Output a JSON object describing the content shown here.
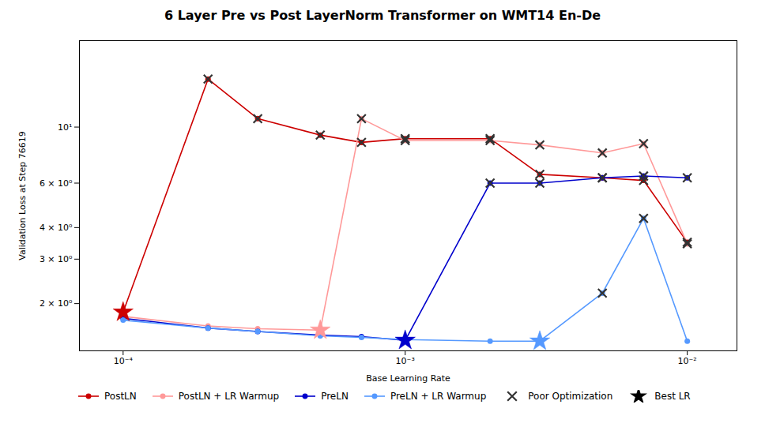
{
  "chart_data": {
    "type": "line",
    "title": "6 Layer Pre vs Post LayerNorm Transformer on WMT14 En-De",
    "xlabel": "Base Learning Rate",
    "ylabel": "Validation Loss at Step 76619",
    "log": true,
    "grid": false,
    "legend": "lower left",
    "xlim": [
      7e-05,
      0.015
    ],
    "ylim": [
      1.3,
      22.0
    ],
    "xticks": [
      {
        "value": 0.0001,
        "label": "10⁻⁴"
      },
      {
        "value": 0.001,
        "label": "10⁻³"
      },
      {
        "value": 0.01,
        "label": "10⁻²"
      }
    ],
    "yticks": [
      {
        "value": 2,
        "label": "2 × 10⁰"
      },
      {
        "value": 3,
        "label": "3 × 10⁰"
      },
      {
        "value": 4,
        "label": "4 × 10⁰"
      },
      {
        "value": 6,
        "label": "6 × 10⁰"
      },
      {
        "value": 10,
        "label": "10¹"
      }
    ],
    "series": [
      {
        "name": "PostLN",
        "type": "line",
        "marker": "circle",
        "color": "#cc0000",
        "x": [
          0.0001,
          0.0002,
          0.0003,
          0.0005,
          0.0007,
          0.001,
          0.002,
          0.003,
          0.005,
          0.007,
          0.01
        ],
        "values": [
          1.85,
          15.5,
          10.8,
          9.3,
          8.7,
          9.0,
          9.0,
          6.5,
          6.3,
          6.15,
          3.5
        ]
      },
      {
        "name": "PostLN + LR Warmup",
        "type": "line",
        "marker": "circle",
        "color": "#ff9999",
        "x": [
          0.0001,
          0.0002,
          0.0003,
          0.0005,
          0.0007,
          0.001,
          0.002,
          0.003,
          0.005,
          0.007,
          0.01
        ],
        "values": [
          1.78,
          1.63,
          1.59,
          1.57,
          10.8,
          8.85,
          8.85,
          8.5,
          7.9,
          8.6,
          3.45
        ]
      },
      {
        "name": "PreLN",
        "type": "line",
        "marker": "circle",
        "color": "#0000cc",
        "x": [
          0.0001,
          0.0002,
          0.0003,
          0.0005,
          0.0007,
          0.001,
          0.002,
          0.003,
          0.005,
          0.007,
          0.01
        ],
        "values": [
          1.75,
          1.6,
          1.55,
          1.5,
          1.48,
          1.43,
          6.0,
          6.0,
          6.3,
          6.4,
          6.3
        ]
      },
      {
        "name": "PreLN + LR Warmup",
        "type": "line",
        "marker": "circle",
        "color": "#5599ff",
        "x": [
          0.0001,
          0.0002,
          0.0003,
          0.0005,
          0.0007,
          0.001,
          0.002,
          0.003,
          0.005,
          0.007,
          0.01
        ],
        "values": [
          1.72,
          1.6,
          1.55,
          1.49,
          1.47,
          1.44,
          1.42,
          1.42,
          2.2,
          4.35,
          1.42
        ]
      },
      {
        "name": "Poor Optimization",
        "type": "scatter",
        "marker": "x",
        "color": "#333333",
        "x": [
          0.0002,
          0.0003,
          0.0005,
          0.0007,
          0.001,
          0.002,
          0.003,
          0.005,
          0.007,
          0.01,
          0.0007,
          0.001,
          0.002,
          0.003,
          0.005,
          0.007,
          0.01,
          0.002,
          0.003,
          0.005,
          0.007,
          0.01,
          0.005,
          0.007
        ],
        "values": [
          15.5,
          10.8,
          9.3,
          8.7,
          9.0,
          9.0,
          6.5,
          6.3,
          6.15,
          3.5,
          10.8,
          8.85,
          8.85,
          8.5,
          7.9,
          8.6,
          3.45,
          6.0,
          6.0,
          6.3,
          6.4,
          6.3,
          2.2,
          4.35
        ]
      },
      {
        "name": "Best LR",
        "type": "scatter",
        "marker": "star",
        "color": "#000000",
        "colors": [
          "#cc0000",
          "#ff9999",
          "#0000cc",
          "#5599ff"
        ],
        "x": [
          0.0001,
          0.0005,
          0.001,
          0.003
        ],
        "values": [
          1.85,
          1.57,
          1.43,
          1.42
        ]
      }
    ]
  }
}
